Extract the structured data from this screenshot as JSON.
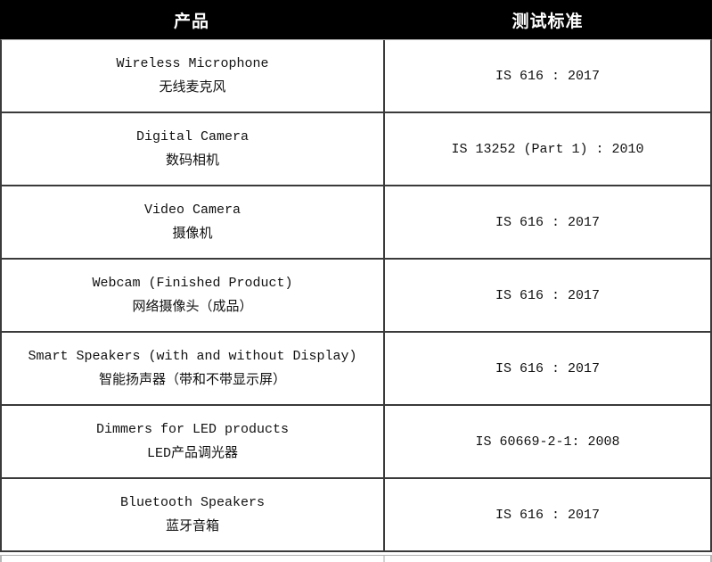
{
  "table": {
    "columns": [
      {
        "label": "产品"
      },
      {
        "label": "测试标准"
      }
    ],
    "rows": [
      {
        "product_en": "Wireless Microphone",
        "product_zh": "无线麦克风",
        "standard": "IS 616 : 2017"
      },
      {
        "product_en": "Digital Camera",
        "product_zh": "数码相机",
        "standard": "IS 13252 (Part 1) : 2010"
      },
      {
        "product_en": "Video Camera",
        "product_zh": "摄像机",
        "standard": "IS 616 : 2017"
      },
      {
        "product_en": "Webcam (Finished Product)",
        "product_zh": "网络摄像头（成品）",
        "standard": "IS 616 : 2017"
      },
      {
        "product_en": "Smart Speakers (with and without Display)",
        "product_zh": "智能扬声器（带和不带显示屏）",
        "standard": "IS 616 : 2017"
      },
      {
        "product_en": "Dimmers for LED products",
        "product_zh": "LED产品调光器",
        "standard": "IS 60669-2-1: 2008"
      },
      {
        "product_en": "Bluetooth Speakers",
        "product_zh": "蓝牙音箱",
        "standard": "IS 616 : 2017"
      }
    ],
    "colors": {
      "header_bg": "#000000",
      "header_text": "#ffffff",
      "border": "#3a3a3a",
      "light_border": "#b0b0b0",
      "text": "#111111",
      "background": "#ffffff"
    }
  }
}
